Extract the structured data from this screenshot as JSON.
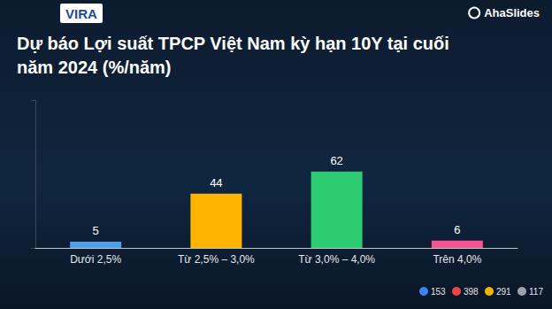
{
  "chart_data": {
    "type": "bar",
    "title": "Dự báo Lợi suất TPCP Việt Nam kỳ hạn 10Y tại cuối năm 2024 (%/năm)",
    "categories": [
      "Dưới 2,5%",
      "Từ 2,5% – 3,0%",
      "Từ 3,0% – 4,0%",
      "Trên 4,0%"
    ],
    "values": [
      5,
      44,
      62,
      6
    ],
    "colors": [
      "#4aa3ea",
      "#ffb400",
      "#2ecc71",
      "#f2558f"
    ],
    "ylim": [
      0,
      120
    ],
    "yticks": [
      0,
      120
    ],
    "grid": false,
    "data_labels": true,
    "tick_labels": "x"
  },
  "header": {
    "logo": "VIRA",
    "brand": "AhaSlides"
  },
  "reactions": [
    153,
    398,
    291,
    117
  ]
}
